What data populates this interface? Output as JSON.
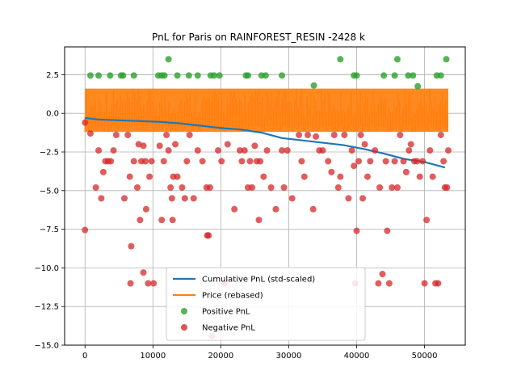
{
  "chart_data": {
    "type": "scatter",
    "title": "PnL for Paris on RAINFOREST_RESIN -2428 k",
    "xlabel": "",
    "ylabel": "",
    "xlim": [
      -3000,
      56000
    ],
    "ylim": [
      -15,
      4.3
    ],
    "grid": true,
    "legend_placement": "lower-center",
    "x_ticks": [
      0,
      10000,
      20000,
      30000,
      40000,
      50000
    ],
    "x_tick_labels": [
      "0",
      "10000",
      "20000",
      "30000",
      "40000",
      "50000"
    ],
    "y_ticks": [
      2.5,
      0.0,
      -2.5,
      -5.0,
      -7.5,
      -10.0,
      -12.5,
      -15.0
    ],
    "y_tick_labels": [
      "2.5",
      "0.0",
      "−2.5",
      "−5.0",
      "−7.5",
      "−10.0",
      "−12.5",
      "−15.0"
    ],
    "series": [
      {
        "name": "Cumulative PnL (std-scaled)",
        "kind": "line",
        "color": "#1f77b4",
        "x": [
          0,
          2000,
          5000,
          8000,
          11000,
          14000,
          17000,
          20000,
          23000,
          26000,
          29000,
          32000,
          35000,
          38000,
          41000,
          44000,
          47000,
          50000,
          53000
        ],
        "y": [
          -0.3,
          -0.4,
          -0.45,
          -0.5,
          -0.55,
          -0.65,
          -0.8,
          -0.95,
          -1.05,
          -1.25,
          -1.6,
          -1.75,
          -1.9,
          -2.05,
          -2.3,
          -2.6,
          -2.95,
          -3.15,
          -3.5
        ]
      },
      {
        "name": "Price (rebased)",
        "kind": "band",
        "color": "#ff7f0e",
        "x_range": [
          0,
          53500
        ],
        "y_range": [
          -1.2,
          1.6
        ]
      },
      {
        "name": "Positive PnL",
        "kind": "scatter",
        "color": "#2ca02c",
        "points": [
          [
            800,
            2.45
          ],
          [
            2000,
            2.45
          ],
          [
            3700,
            2.45
          ],
          [
            5300,
            2.45
          ],
          [
            5600,
            2.45
          ],
          [
            7200,
            2.45
          ],
          [
            10800,
            2.45
          ],
          [
            11300,
            2.45
          ],
          [
            11700,
            2.45
          ],
          [
            12300,
            3.5
          ],
          [
            13600,
            2.45
          ],
          [
            15300,
            2.45
          ],
          [
            16600,
            2.45
          ],
          [
            18500,
            2.45
          ],
          [
            19000,
            2.45
          ],
          [
            19800,
            2.45
          ],
          [
            23700,
            2.45
          ],
          [
            24000,
            2.45
          ],
          [
            26000,
            2.45
          ],
          [
            26600,
            2.45
          ],
          [
            29000,
            2.45
          ],
          [
            33700,
            1.8
          ],
          [
            37600,
            3.5
          ],
          [
            39600,
            2.45
          ],
          [
            40000,
            2.45
          ],
          [
            44000,
            2.45
          ],
          [
            45600,
            2.45
          ],
          [
            46000,
            3.5
          ],
          [
            47600,
            2.45
          ],
          [
            48300,
            2.45
          ],
          [
            49000,
            1.75
          ],
          [
            51800,
            2.45
          ],
          [
            52400,
            2.45
          ],
          [
            53200,
            3.5
          ]
        ]
      },
      {
        "name": "Negative PnL",
        "kind": "scatter",
        "color": "#d62728",
        "points": [
          [
            0,
            -0.6
          ],
          [
            0,
            -7.55
          ],
          [
            800,
            -1.3
          ],
          [
            1600,
            -4.8
          ],
          [
            2000,
            -2.4
          ],
          [
            2400,
            -5.5
          ],
          [
            2700,
            -3.8
          ],
          [
            3000,
            -3.1
          ],
          [
            3400,
            -3.1
          ],
          [
            3800,
            -3.1
          ],
          [
            4200,
            -2.4
          ],
          [
            4600,
            -1.4
          ],
          [
            5800,
            -5.5
          ],
          [
            6300,
            -1.4
          ],
          [
            6600,
            -4.1
          ],
          [
            6700,
            -11.0
          ],
          [
            6800,
            -8.6
          ],
          [
            7200,
            -3.1
          ],
          [
            7700,
            -4.8
          ],
          [
            7900,
            -2.0
          ],
          [
            8100,
            -6.9
          ],
          [
            8300,
            -3.1
          ],
          [
            8600,
            -2.1
          ],
          [
            8900,
            -3.1
          ],
          [
            8600,
            -10.3
          ],
          [
            9000,
            -6.2
          ],
          [
            9300,
            -11.0
          ],
          [
            9500,
            -4.1
          ],
          [
            9800,
            -3.1
          ],
          [
            10100,
            -11.0
          ],
          [
            11000,
            -2.1
          ],
          [
            11300,
            -6.9
          ],
          [
            11600,
            -3.1
          ],
          [
            12000,
            -1.4
          ],
          [
            12300,
            -2.4
          ],
          [
            12600,
            -4.8
          ],
          [
            12800,
            -5.5
          ],
          [
            12900,
            -6.9
          ],
          [
            13000,
            -4.1
          ],
          [
            13300,
            -2.0
          ],
          [
            13600,
            -4.1
          ],
          [
            14300,
            -4.8
          ],
          [
            14700,
            -5.5
          ],
          [
            15000,
            -3.1
          ],
          [
            15400,
            -1.4
          ],
          [
            16000,
            -5.5
          ],
          [
            16600,
            -2.4
          ],
          [
            17300,
            -3.1
          ],
          [
            17900,
            -4.8
          ],
          [
            18000,
            -7.9
          ],
          [
            18200,
            -7.9
          ],
          [
            18400,
            -4.8
          ],
          [
            18700,
            -14.4
          ],
          [
            19600,
            -2.4
          ],
          [
            20100,
            -3.1
          ],
          [
            20500,
            -11.0
          ],
          [
            21000,
            -2.0
          ],
          [
            22000,
            -6.2
          ],
          [
            22800,
            -2.4
          ],
          [
            23100,
            -3.1
          ],
          [
            23500,
            -2.4
          ],
          [
            24000,
            -4.8
          ],
          [
            24300,
            -3.1
          ],
          [
            24600,
            -4.8
          ],
          [
            25000,
            -2.1
          ],
          [
            25300,
            -3.1
          ],
          [
            25600,
            -6.9
          ],
          [
            25800,
            -3.1
          ],
          [
            26300,
            -4.1
          ],
          [
            26800,
            -2.4
          ],
          [
            27400,
            -4.8
          ],
          [
            28100,
            -6.2
          ],
          [
            29000,
            -2.4
          ],
          [
            29300,
            -4.8
          ],
          [
            29800,
            -2.4
          ],
          [
            30500,
            -5.5
          ],
          [
            31500,
            -1.4
          ],
          [
            31900,
            -3.1
          ],
          [
            32300,
            -4.1
          ],
          [
            32800,
            -1.4
          ],
          [
            33600,
            -6.2
          ],
          [
            34000,
            -1.5
          ],
          [
            34500,
            -2.4
          ],
          [
            35000,
            -2.4
          ],
          [
            35800,
            -3.1
          ],
          [
            36300,
            -3.8
          ],
          [
            36700,
            -1.4
          ],
          [
            37300,
            -4.8
          ],
          [
            37600,
            -4.1
          ],
          [
            38200,
            -1.4
          ],
          [
            38800,
            -5.5
          ],
          [
            39300,
            -2.4
          ],
          [
            39600,
            -3.4
          ],
          [
            39800,
            -11.0
          ],
          [
            40000,
            -7.6
          ],
          [
            40300,
            -3.1
          ],
          [
            40600,
            -1.4
          ],
          [
            40900,
            -5.5
          ],
          [
            41200,
            -2.0
          ],
          [
            41600,
            -4.1
          ],
          [
            42000,
            -3.1
          ],
          [
            42700,
            -2.4
          ],
          [
            43200,
            -11.0
          ],
          [
            43400,
            -4.8
          ],
          [
            43800,
            -10.4
          ],
          [
            44300,
            -3.1
          ],
          [
            44500,
            -7.6
          ],
          [
            44800,
            -11.0
          ],
          [
            45200,
            -4.8
          ],
          [
            45600,
            -3.1
          ],
          [
            46000,
            -4.8
          ],
          [
            46400,
            -1.4
          ],
          [
            46900,
            -3.1
          ],
          [
            47300,
            -3.8
          ],
          [
            47700,
            -2.4
          ],
          [
            48000,
            -2.0
          ],
          [
            48500,
            -3.1
          ],
          [
            48900,
            -3.1
          ],
          [
            49300,
            -4.1
          ],
          [
            49700,
            -3.1
          ],
          [
            50000,
            -11.0
          ],
          [
            50300,
            -6.9
          ],
          [
            50800,
            -2.4
          ],
          [
            51200,
            -4.1
          ],
          [
            51600,
            -11.0
          ],
          [
            52000,
            -11.0
          ],
          [
            52400,
            -1.4
          ],
          [
            52800,
            -3.1
          ],
          [
            53000,
            -4.8
          ],
          [
            53300,
            -4.8
          ],
          [
            53500,
            -2.4
          ]
        ]
      }
    ]
  }
}
